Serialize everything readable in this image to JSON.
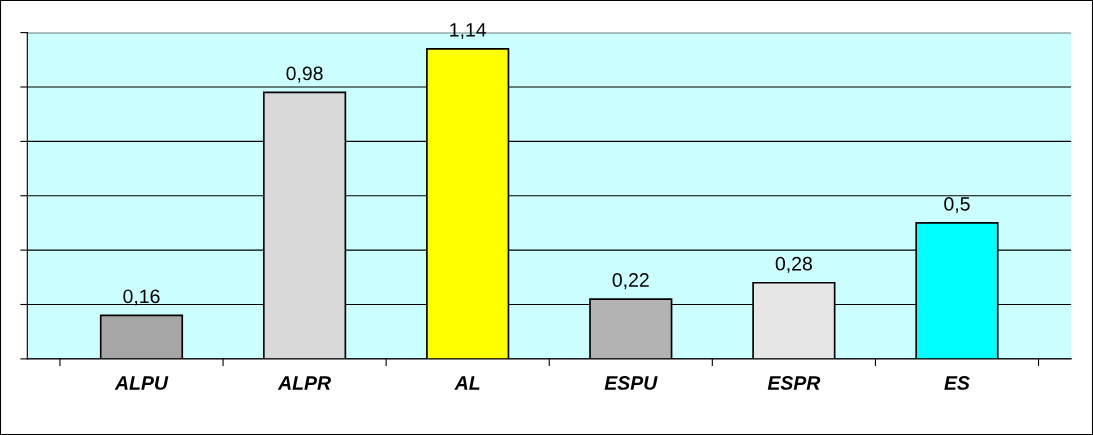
{
  "chart_data": {
    "type": "bar",
    "categories": [
      "ALPU",
      "ALPR",
      "AL",
      "ESPU",
      "ESPR",
      "ES"
    ],
    "values": [
      0.16,
      0.98,
      1.14,
      0.22,
      0.28,
      0.5
    ],
    "colors": [
      "#a6a6a6",
      "#d9d9d9",
      "#ffff00",
      "#b3b3b3",
      "#e6e6e6",
      "#00ffff"
    ],
    "value_labels": [
      "0,16",
      "0,98",
      "1,14",
      "0,22",
      "0,28",
      "0,5"
    ],
    "ylim": [
      0,
      1.2
    ],
    "yticks": [
      {
        "value": 0,
        "label": null
      },
      {
        "value": 0.2,
        "label": null
      },
      {
        "value": 0.4,
        "label": null
      },
      {
        "value": 0.6,
        "label": null
      },
      {
        "value": 0.8,
        "label": null
      },
      {
        "value": 1.0,
        "label": null
      },
      {
        "value": 1.2,
        "label": null
      }
    ],
    "grid": "y",
    "tick_labels": "x",
    "legend": false
  }
}
